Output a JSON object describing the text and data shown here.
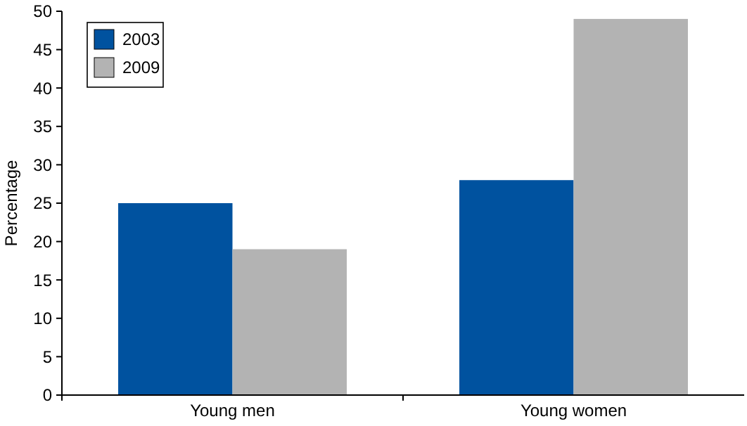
{
  "chart_data": {
    "type": "bar",
    "ylabel": "Percentage",
    "categories": [
      "Young men",
      "Young women"
    ],
    "series": [
      {
        "name": "2003",
        "color": "#00529f",
        "values": [
          25,
          28
        ]
      },
      {
        "name": "2009",
        "color": "#b3b3b3",
        "values": [
          19,
          49
        ]
      }
    ],
    "ylim": [
      0,
      50
    ],
    "yticks": [
      0,
      5,
      10,
      15,
      20,
      25,
      30,
      35,
      40,
      45,
      50
    ],
    "grid": false,
    "legend": "top left"
  }
}
